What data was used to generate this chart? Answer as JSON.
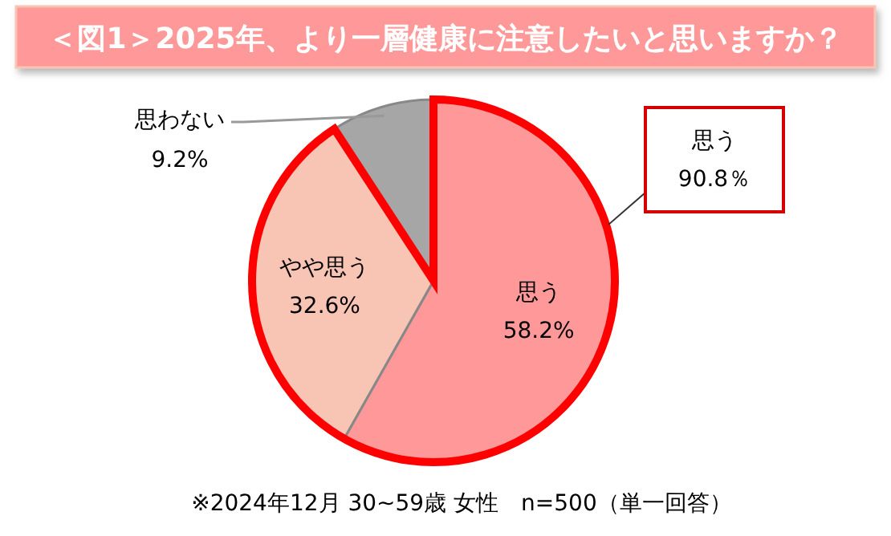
{
  "chart_data": {
    "type": "pie",
    "title": "＜図1＞2025年、より一層健康に注意したいと思いますか？",
    "categories": [
      "思う",
      "やや思う",
      "思わない"
    ],
    "values": [
      58.2,
      32.6,
      9.2
    ],
    "colors": [
      "#ff9999",
      "#f8c4b4",
      "#a6a6a6"
    ],
    "data_labels": true,
    "value_labels": [
      "58.2%",
      "32.6%",
      "9.2%"
    ],
    "annotations": [
      "思う\n90.8％",
      "※2024年12月 30~59歳 女性　n=500（単一回答）"
    ]
  }
}
